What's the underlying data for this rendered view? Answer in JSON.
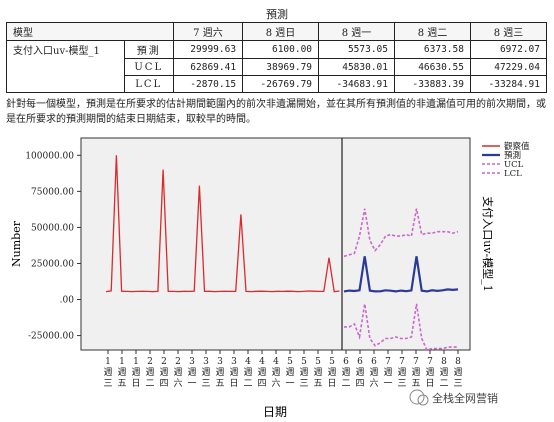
{
  "table": {
    "caption": "預測",
    "header_model": "模型",
    "periods": [
      "7 週六",
      "8 週日",
      "8 週一",
      "8 週二",
      "8 週三"
    ],
    "model_name": "支付入口uv-模型_1",
    "rows": [
      {
        "stat": "預測",
        "values": [
          "29999.63",
          "6100.00",
          "5573.05",
          "6373.58",
          "6972.07"
        ]
      },
      {
        "stat": "UCL",
        "values": [
          "62869.41",
          "38969.79",
          "45830.01",
          "46630.55",
          "47229.04"
        ]
      },
      {
        "stat": "LCL",
        "values": [
          "-2870.15",
          "-26769.79",
          "-34683.91",
          "-33883.39",
          "-33284.91"
        ]
      }
    ]
  },
  "note": "針對每一個模型，預測是在所要求的估計期間範圍內的前次非遺漏開始，並在其所有預測值的非遺漏值可用的前次期間，或是在所要求的預測期間的結束日期結束，取較早的時間。",
  "watermark": "全栈全网营销",
  "chart_data": {
    "type": "line",
    "ylabel": "Number",
    "xlabel": "日期",
    "right_label": "支付入口uv-模型_1",
    "ylim": [
      -35000,
      112000
    ],
    "y_ticks": [
      "100000.00",
      "75000.00",
      "50000.00",
      "25000.00",
      ".00",
      "-25000.00"
    ],
    "x_ticks": [
      [
        "1",
        "週",
        "三"
      ],
      [
        "1",
        "週",
        "五"
      ],
      [
        "1",
        "週",
        "日"
      ],
      [
        "2",
        "週",
        "二"
      ],
      [
        "2",
        "週",
        "四"
      ],
      [
        "2",
        "週",
        "六"
      ],
      [
        "3",
        "週",
        "一"
      ],
      [
        "3",
        "週",
        "三"
      ],
      [
        "3",
        "週",
        "五"
      ],
      [
        "3",
        "週",
        "日"
      ],
      [
        "4",
        "週",
        "二"
      ],
      [
        "4",
        "週",
        "四"
      ],
      [
        "4",
        "週",
        "六"
      ],
      [
        "5",
        "週",
        "一"
      ],
      [
        "5",
        "週",
        "三"
      ],
      [
        "5",
        "週",
        "五"
      ],
      [
        "5",
        "週",
        "日"
      ],
      [
        "6",
        "週",
        "二"
      ],
      [
        "6",
        "週",
        "四"
      ],
      [
        "6",
        "週",
        "六"
      ],
      [
        "7",
        "週",
        "一"
      ],
      [
        "7",
        "週",
        "三"
      ],
      [
        "7",
        "週",
        "五"
      ],
      [
        "7",
        "週",
        "日"
      ],
      [
        "8",
        "週",
        "二"
      ],
      [
        "8",
        "週",
        "三"
      ]
    ],
    "forecast_start_index": 16,
    "legend": [
      {
        "name": "觀察值",
        "color": "#d92b2b",
        "dashed": false
      },
      {
        "name": "預測",
        "color": "#2b3a9a",
        "dashed": false
      },
      {
        "name": "UCL",
        "color": "#cc66cc",
        "dashed": true
      },
      {
        "name": "LCL",
        "color": "#cc66cc",
        "dashed": true
      }
    ],
    "legend_position": "top-right",
    "observed": {
      "x": [
        0,
        1,
        2,
        3,
        4,
        5,
        6,
        7,
        8,
        9,
        10,
        11,
        12,
        13,
        14,
        15,
        16,
        17,
        18,
        19,
        20,
        21,
        22,
        23,
        24,
        25,
        26,
        27,
        28,
        29,
        30,
        31,
        32,
        33,
        34,
        35,
        36,
        37,
        38,
        39,
        40,
        41,
        42,
        43,
        44,
        45
      ],
      "values": [
        5500,
        6000,
        100000,
        5800,
        5600,
        5500,
        5600,
        5700,
        5600,
        5500,
        5600,
        90000,
        5700,
        5600,
        5500,
        5700,
        5600,
        5800,
        79000,
        5600,
        5700,
        5500,
        5600,
        5700,
        5600,
        5700,
        59000,
        5600,
        5500,
        5700,
        5800,
        5600,
        5500,
        5700,
        5600,
        5800,
        5700,
        5500,
        5600,
        5900,
        5800,
        5600,
        5700,
        29000,
        5500,
        5900
      ]
    },
    "forecast": {
      "x": [
        46,
        47,
        48,
        49,
        50,
        51,
        52,
        53,
        54,
        55,
        56,
        57,
        58,
        59,
        60,
        61,
        62,
        63,
        64,
        65,
        66,
        67,
        68
      ],
      "values": [
        5600,
        6200,
        5900,
        6400,
        30000,
        6100,
        5600,
        5700,
        6400,
        6100,
        5600,
        6200,
        5800,
        6300,
        30000,
        6100,
        5600,
        6400,
        6000,
        6400,
        7000,
        6700,
        7000
      ],
      "ucl": [
        30000,
        31000,
        32000,
        44000,
        63000,
        41000,
        34000,
        38000,
        44000,
        45000,
        44000,
        44000,
        45000,
        44000,
        63000,
        45000,
        46000,
        46000,
        47000,
        47000,
        47000,
        46000,
        47000
      ],
      "lcl": [
        -19000,
        -19000,
        -17000,
        -26000,
        -3000,
        -27000,
        -32000,
        -30000,
        -27000,
        -27000,
        -26000,
        -27000,
        -27000,
        -26000,
        -3000,
        -27000,
        -35000,
        -34000,
        -34000,
        -34000,
        -33000,
        -33000,
        -33000
      ]
    }
  }
}
